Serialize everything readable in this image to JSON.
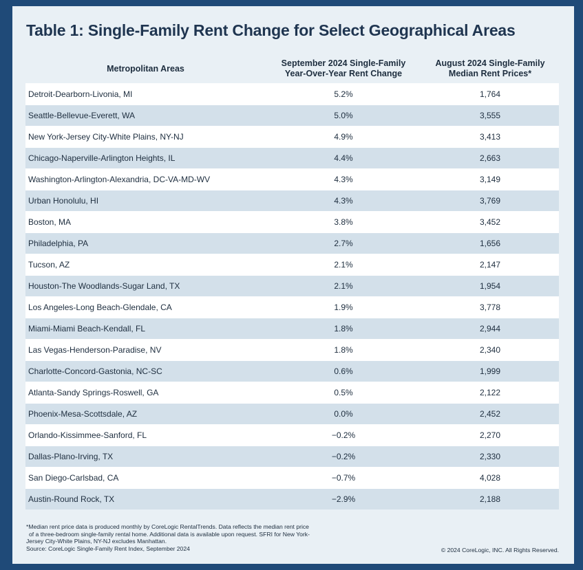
{
  "title": "Table 1: Single-Family Rent Change for Select Geographical Areas",
  "chart_data": {
    "type": "table",
    "title": "Table 1: Single-Family Rent Change for Select Geographical Areas",
    "columns": [
      "Metropolitan Areas",
      "September 2024 Single-Family Year-Over-Year Rent Change",
      "August 2024 Single-Family Median Rent Prices*"
    ],
    "column_header_lines": [
      [
        "Metropolitan Areas"
      ],
      [
        "September 2024 Single-Family",
        "Year-Over-Year Rent Change"
      ],
      [
        "August 2024 Single-Family",
        "Median Rent Prices*"
      ]
    ],
    "rows": [
      {
        "metro": "Detroit-Dearborn-Livonia, MI",
        "yoy": "5.2%",
        "rent": "1,764"
      },
      {
        "metro": "Seattle-Bellevue-Everett, WA",
        "yoy": "5.0%",
        "rent": "3,555"
      },
      {
        "metro": "New York-Jersey City-White Plains, NY-NJ",
        "yoy": "4.9%",
        "rent": "3,413"
      },
      {
        "metro": "Chicago-Naperville-Arlington Heights, IL",
        "yoy": "4.4%",
        "rent": "2,663"
      },
      {
        "metro": "Washington-Arlington-Alexandria, DC-VA-MD-WV",
        "yoy": "4.3%",
        "rent": "3,149"
      },
      {
        "metro": "Urban Honolulu, HI",
        "yoy": "4.3%",
        "rent": "3,769"
      },
      {
        "metro": "Boston, MA",
        "yoy": "3.8%",
        "rent": "3,452"
      },
      {
        "metro": "Philadelphia, PA",
        "yoy": "2.7%",
        "rent": "1,656"
      },
      {
        "metro": "Tucson, AZ",
        "yoy": "2.1%",
        "rent": "2,147"
      },
      {
        "metro": "Houston-The Woodlands-Sugar Land, TX",
        "yoy": "2.1%",
        "rent": "1,954"
      },
      {
        "metro": "Los Angeles-Long Beach-Glendale, CA",
        "yoy": "1.9%",
        "rent": "3,778"
      },
      {
        "metro": "Miami-Miami Beach-Kendall, FL",
        "yoy": "1.8%",
        "rent": "2,944"
      },
      {
        "metro": "Las Vegas-Henderson-Paradise, NV",
        "yoy": "1.8%",
        "rent": "2,340"
      },
      {
        "metro": "Charlotte-Concord-Gastonia, NC-SC",
        "yoy": "0.6%",
        "rent": "1,999"
      },
      {
        "metro": "Atlanta-Sandy Springs-Roswell, GA",
        "yoy": "0.5%",
        "rent": "2,122"
      },
      {
        "metro": "Phoenix-Mesa-Scottsdale, AZ",
        "yoy": "0.0%",
        "rent": "2,452"
      },
      {
        "metro": "Orlando-Kissimmee-Sanford, FL",
        "yoy": "−0.2%",
        "rent": "2,270"
      },
      {
        "metro": "Dallas-Plano-Irving, TX",
        "yoy": "−0.2%",
        "rent": "2,330"
      },
      {
        "metro": "San Diego-Carlsbad, CA",
        "yoy": "−0.7%",
        "rent": "4,028"
      },
      {
        "metro": "Austin-Round Rock, TX",
        "yoy": "−2.9%",
        "rent": "2,188"
      }
    ]
  },
  "footnote_lines": [
    "*Median rent price data is produced monthly by CoreLogic RentalTrends. Data reflects the median rent price",
    "of a three-bedroom single-family rental home. Additional data is available upon request. SFRI for New York-",
    "Jersey City-White Plains, NY-NJ excludes Manhattan."
  ],
  "source": "Source: CoreLogic Single-Family Rent Index, September 2024",
  "copyright": "© 2024 CoreLogic, INC. All Rights Reserved.",
  "colors": {
    "border": "#1f4a78",
    "card_background": "#e9f0f5",
    "row_white": "#ffffff",
    "row_shaded": "#d3e0ea",
    "title": "#1f3550"
  }
}
